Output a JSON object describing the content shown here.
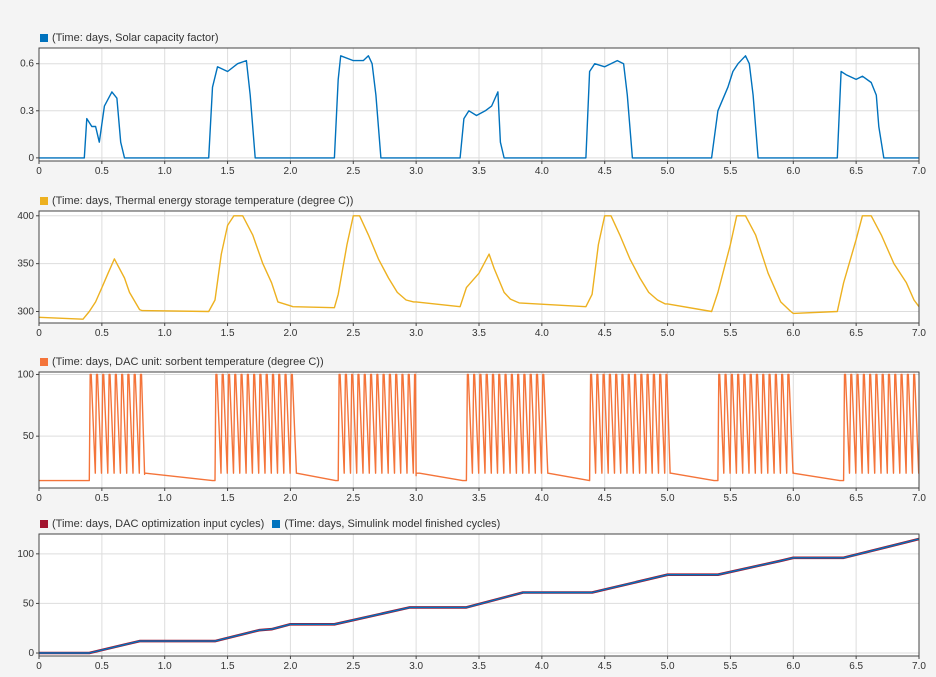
{
  "colors": {
    "solar": "#0072BD",
    "thermal": "#EDB120",
    "dac": "#F4743A",
    "input": "#A2142F",
    "finished": "#0072BD",
    "grid": "#dddddd",
    "axes": "#444444",
    "background": "#ffffff"
  },
  "chart_data": [
    {
      "type": "line",
      "legend": [
        {
          "label": "(Time: days, Solar capacity factor)",
          "color": "#0072BD"
        }
      ],
      "xlim": [
        0,
        7
      ],
      "ylim": [
        -0.02,
        0.7
      ],
      "xticks": [
        "0",
        "0.5",
        "1.0",
        "1.5",
        "2.0",
        "2.5",
        "3.0",
        "3.5",
        "4.0",
        "4.5",
        "5.0",
        "5.5",
        "6.0",
        "6.5",
        "7.0"
      ],
      "yticks": [
        {
          "v": 0,
          "label": "0"
        },
        {
          "v": 0.3,
          "label": "0.3"
        },
        {
          "v": 0.6,
          "label": "0.6"
        }
      ],
      "grid": true,
      "series": [
        {
          "name": "Solar capacity factor",
          "color": "#0072BD",
          "x": [
            0,
            0.36,
            0.38,
            0.42,
            0.45,
            0.48,
            0.52,
            0.58,
            0.62,
            0.65,
            0.68,
            1.35,
            1.38,
            1.42,
            1.5,
            1.58,
            1.65,
            1.68,
            1.72,
            2.35,
            2.38,
            2.4,
            2.5,
            2.58,
            2.62,
            2.65,
            2.68,
            2.72,
            3.35,
            3.38,
            3.42,
            3.48,
            3.55,
            3.6,
            3.65,
            3.67,
            3.7,
            4.35,
            4.38,
            4.42,
            4.5,
            4.6,
            4.65,
            4.68,
            4.72,
            5.35,
            5.4,
            5.48,
            5.52,
            5.56,
            5.62,
            5.65,
            5.68,
            5.72,
            6.35,
            6.38,
            6.42,
            6.5,
            6.55,
            6.62,
            6.66,
            6.68,
            6.72,
            7.0
          ],
          "y": [
            0,
            0,
            0.25,
            0.2,
            0.2,
            0.1,
            0.33,
            0.42,
            0.38,
            0.1,
            0,
            0,
            0.45,
            0.58,
            0.55,
            0.6,
            0.62,
            0.4,
            0,
            0,
            0.5,
            0.65,
            0.62,
            0.62,
            0.65,
            0.6,
            0.4,
            0,
            0,
            0.25,
            0.3,
            0.27,
            0.3,
            0.33,
            0.42,
            0.1,
            0,
            0,
            0.55,
            0.6,
            0.58,
            0.62,
            0.6,
            0.4,
            0,
            0,
            0.3,
            0.45,
            0.55,
            0.6,
            0.65,
            0.6,
            0.4,
            0,
            0,
            0.55,
            0.53,
            0.5,
            0.52,
            0.48,
            0.4,
            0.2,
            0,
            0
          ]
        }
      ]
    },
    {
      "type": "line",
      "legend": [
        {
          "label": "(Time: days, Thermal energy storage temperature (degree C))",
          "color": "#EDB120"
        }
      ],
      "xlim": [
        0,
        7
      ],
      "ylim": [
        288,
        405
      ],
      "xticks": [
        "0",
        "0.5",
        "1.0",
        "1.5",
        "2.0",
        "2.5",
        "3.0",
        "3.5",
        "4.0",
        "4.5",
        "5.0",
        "5.5",
        "6.0",
        "6.5",
        "7.0"
      ],
      "yticks": [
        {
          "v": 300,
          "label": "300"
        },
        {
          "v": 350,
          "label": "350"
        },
        {
          "v": 400,
          "label": "400"
        }
      ],
      "grid": true,
      "series": [
        {
          "name": "Thermal energy storage temperature",
          "color": "#EDB120",
          "x": [
            0,
            0.35,
            0.4,
            0.45,
            0.5,
            0.55,
            0.6,
            0.68,
            0.72,
            0.8,
            0.82,
            1.35,
            1.4,
            1.45,
            1.5,
            1.55,
            1.62,
            1.7,
            1.78,
            1.85,
            1.9,
            2.0,
            2.02,
            2.35,
            2.38,
            2.45,
            2.5,
            2.55,
            2.62,
            2.7,
            2.78,
            2.85,
            2.92,
            2.98,
            3.0,
            3.35,
            3.4,
            3.5,
            3.58,
            3.62,
            3.7,
            3.75,
            3.8,
            3.82,
            4.35,
            4.4,
            4.45,
            4.5,
            4.55,
            4.62,
            4.7,
            4.78,
            4.85,
            4.92,
            4.98,
            5.0,
            5.35,
            5.4,
            5.5,
            5.55,
            5.62,
            5.7,
            5.8,
            5.9,
            5.98,
            6.0,
            6.35,
            6.4,
            6.5,
            6.55,
            6.62,
            6.7,
            6.8,
            6.9,
            6.96,
            7.0
          ],
          "y": [
            294,
            292,
            300,
            310,
            325,
            340,
            355,
            335,
            320,
            302,
            301,
            300,
            312,
            360,
            390,
            400,
            400,
            380,
            350,
            330,
            310,
            306,
            305,
            304,
            318,
            370,
            400,
            400,
            380,
            355,
            335,
            320,
            312,
            310,
            310,
            305,
            325,
            340,
            360,
            345,
            320,
            313,
            310,
            309,
            305,
            318,
            370,
            400,
            400,
            380,
            355,
            335,
            320,
            312,
            308,
            308,
            300,
            320,
            370,
            400,
            400,
            380,
            340,
            310,
            300,
            298,
            300,
            330,
            375,
            400,
            400,
            380,
            350,
            330,
            312,
            305
          ]
        }
      ]
    },
    {
      "type": "line",
      "legend": [
        {
          "label": "(Time: days, DAC unit: sorbent temperature (degree C))",
          "color": "#F4743A"
        }
      ],
      "xlim": [
        0,
        7
      ],
      "ylim": [
        8,
        102
      ],
      "xticks": [
        "0",
        "0.5",
        "1.0",
        "1.5",
        "2.0",
        "2.5",
        "3.0",
        "3.5",
        "4.0",
        "4.5",
        "5.0",
        "5.5",
        "6.0",
        "6.5",
        "7.0"
      ],
      "yticks": [
        {
          "v": 50,
          "label": "50"
        },
        {
          "v": 100,
          "label": "100"
        }
      ],
      "grid": true,
      "series": [
        {
          "name": "DAC unit: sorbent temperature",
          "color": "#F4743A",
          "baseline": 14,
          "idle": [
            [
              0,
              0.38,
              14,
              14
            ],
            [
              0.84,
              1.38,
              19,
              14
            ],
            [
              2.05,
              2.36,
              20,
              14
            ],
            [
              3.0,
              3.37,
              18,
              14
            ],
            [
              4.05,
              4.38,
              20,
              14
            ],
            [
              5.02,
              5.37,
              21,
              14
            ],
            [
              6.0,
              6.37,
              21,
              14
            ]
          ],
          "cycles": [
            [
              0.4,
              0.84
            ],
            [
              1.4,
              2.05
            ],
            [
              2.38,
              3.0
            ],
            [
              3.4,
              4.05
            ],
            [
              4.38,
              5.02
            ],
            [
              5.4,
              6.0
            ],
            [
              6.4,
              7.0
            ]
          ],
          "cycle_period": 0.05,
          "max": 100,
          "min": 20
        }
      ]
    },
    {
      "type": "line",
      "legend": [
        {
          "label": "(Time: days, DAC optimization input cycles)",
          "color": "#A2142F"
        },
        {
          "label": "(Time: days, Simulink model finished cycles)",
          "color": "#0072BD"
        }
      ],
      "xlim": [
        0,
        7
      ],
      "ylim": [
        -3,
        120
      ],
      "xticks": [
        "0",
        "0.5",
        "1.0",
        "1.5",
        "2.0",
        "2.5",
        "3.0",
        "3.5",
        "4.0",
        "4.5",
        "5.0",
        "5.5",
        "6.0",
        "6.5",
        "7.0"
      ],
      "yticks": [
        {
          "v": 0,
          "label": "0"
        },
        {
          "v": 50,
          "label": "50"
        },
        {
          "v": 100,
          "label": "100"
        }
      ],
      "grid": true,
      "series": [
        {
          "name": "DAC optimization input cycles",
          "color": "#A2142F",
          "x": [
            0,
            0.4,
            0.8,
            1.4,
            1.75,
            1.85,
            2.0,
            2.35,
            2.95,
            3.4,
            3.85,
            4.4,
            5.0,
            5.4,
            5.9,
            6.0,
            6.4,
            7.0
          ],
          "y": [
            0,
            0,
            12,
            12,
            23,
            24,
            29,
            29,
            46,
            46,
            61,
            61,
            79,
            79,
            93,
            96,
            96,
            115
          ]
        },
        {
          "name": "Simulink model finished cycles",
          "color": "#0072BD",
          "x": [
            0,
            0.4,
            0.8,
            1.4,
            1.75,
            1.85,
            2.0,
            2.35,
            2.95,
            3.4,
            3.85,
            4.4,
            5.0,
            5.4,
            5.9,
            6.0,
            6.4,
            7.0
          ],
          "y": [
            0,
            0,
            12,
            12,
            23,
            24,
            29,
            29,
            46,
            46,
            61,
            61,
            79,
            79,
            93,
            96,
            96,
            115
          ]
        }
      ]
    }
  ]
}
